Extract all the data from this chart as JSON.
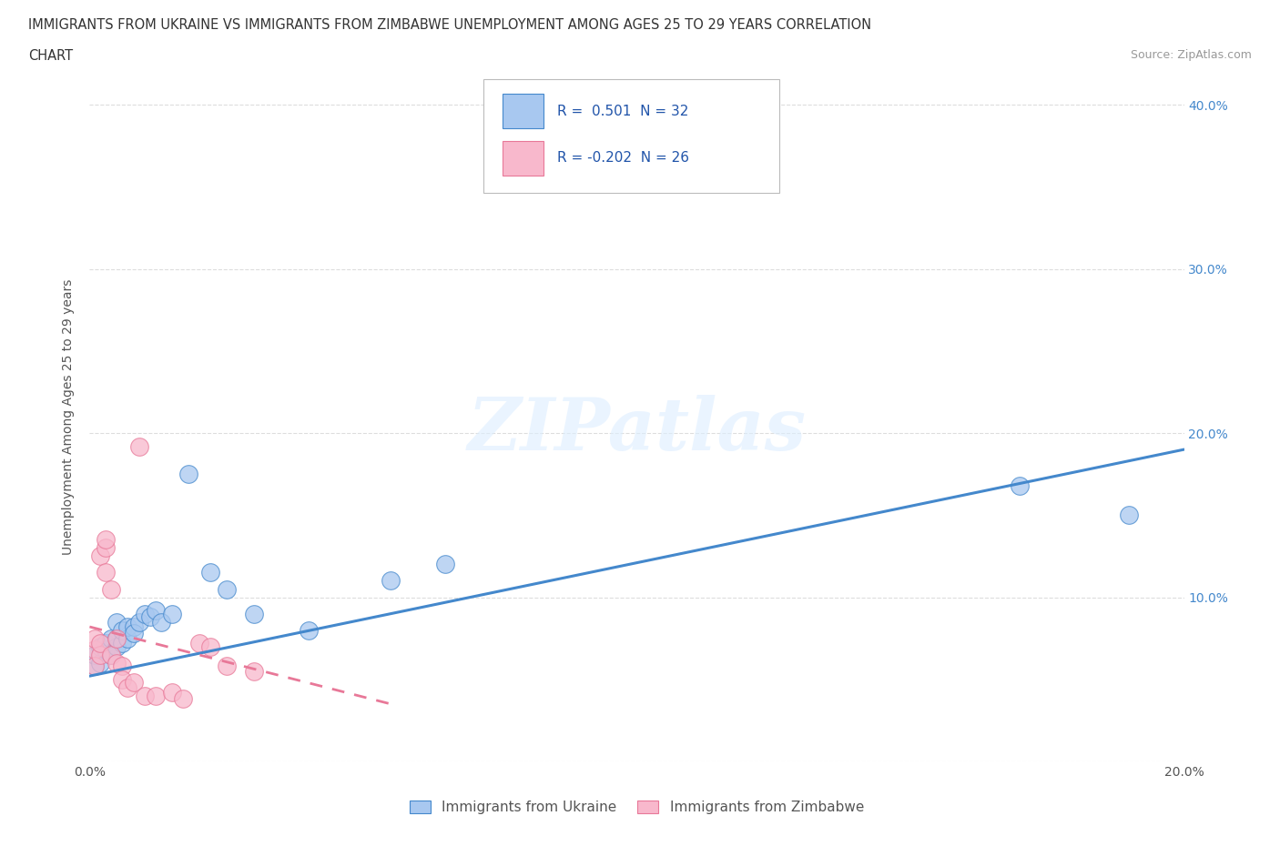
{
  "title_line1": "IMMIGRANTS FROM UKRAINE VS IMMIGRANTS FROM ZIMBABWE UNEMPLOYMENT AMONG AGES 25 TO 29 YEARS CORRELATION",
  "title_line2": "CHART",
  "source_text": "Source: ZipAtlas.com",
  "ylabel": "Unemployment Among Ages 25 to 29 years",
  "xlim": [
    0.0,
    0.2
  ],
  "ylim": [
    0.0,
    0.42
  ],
  "xticks": [
    0.0,
    0.05,
    0.1,
    0.15,
    0.2
  ],
  "yticks": [
    0.0,
    0.1,
    0.2,
    0.3,
    0.4
  ],
  "ukraine_R": 0.501,
  "ukraine_N": 32,
  "zimbabwe_R": -0.202,
  "zimbabwe_N": 26,
  "ukraine_color": "#a8c8f0",
  "zimbabwe_color": "#f8b8cc",
  "ukraine_line_color": "#4488cc",
  "zimbabwe_line_color": "#e87898",
  "ukraine_x": [
    0.001,
    0.001,
    0.002,
    0.002,
    0.003,
    0.003,
    0.004,
    0.004,
    0.005,
    0.005,
    0.005,
    0.006,
    0.006,
    0.007,
    0.007,
    0.008,
    0.008,
    0.009,
    0.01,
    0.011,
    0.012,
    0.013,
    0.015,
    0.018,
    0.022,
    0.025,
    0.03,
    0.04,
    0.055,
    0.065,
    0.17,
    0.19
  ],
  "ukraine_y": [
    0.058,
    0.065,
    0.06,
    0.07,
    0.068,
    0.072,
    0.065,
    0.075,
    0.07,
    0.075,
    0.085,
    0.072,
    0.08,
    0.075,
    0.082,
    0.082,
    0.078,
    0.085,
    0.09,
    0.088,
    0.092,
    0.085,
    0.09,
    0.175,
    0.115,
    0.105,
    0.09,
    0.08,
    0.11,
    0.12,
    0.168,
    0.15
  ],
  "zimbabwe_x": [
    0.001,
    0.001,
    0.001,
    0.002,
    0.002,
    0.002,
    0.003,
    0.003,
    0.003,
    0.004,
    0.004,
    0.005,
    0.005,
    0.006,
    0.006,
    0.007,
    0.008,
    0.009,
    0.01,
    0.012,
    0.015,
    0.017,
    0.02,
    0.022,
    0.025,
    0.03
  ],
  "zimbabwe_y": [
    0.068,
    0.075,
    0.058,
    0.065,
    0.072,
    0.125,
    0.115,
    0.13,
    0.135,
    0.065,
    0.105,
    0.06,
    0.075,
    0.058,
    0.05,
    0.045,
    0.048,
    0.192,
    0.04,
    0.04,
    0.042,
    0.038,
    0.072,
    0.07,
    0.058,
    0.055
  ],
  "ukraine_trendline_x": [
    0.0,
    0.2
  ],
  "ukraine_trendline_y": [
    0.052,
    0.19
  ],
  "zimbabwe_trendline_x": [
    0.0,
    0.055
  ],
  "zimbabwe_trendline_y": [
    0.082,
    0.035
  ],
  "watermark_text": "ZIPatlas",
  "background_color": "#ffffff",
  "grid_color": "#cccccc"
}
